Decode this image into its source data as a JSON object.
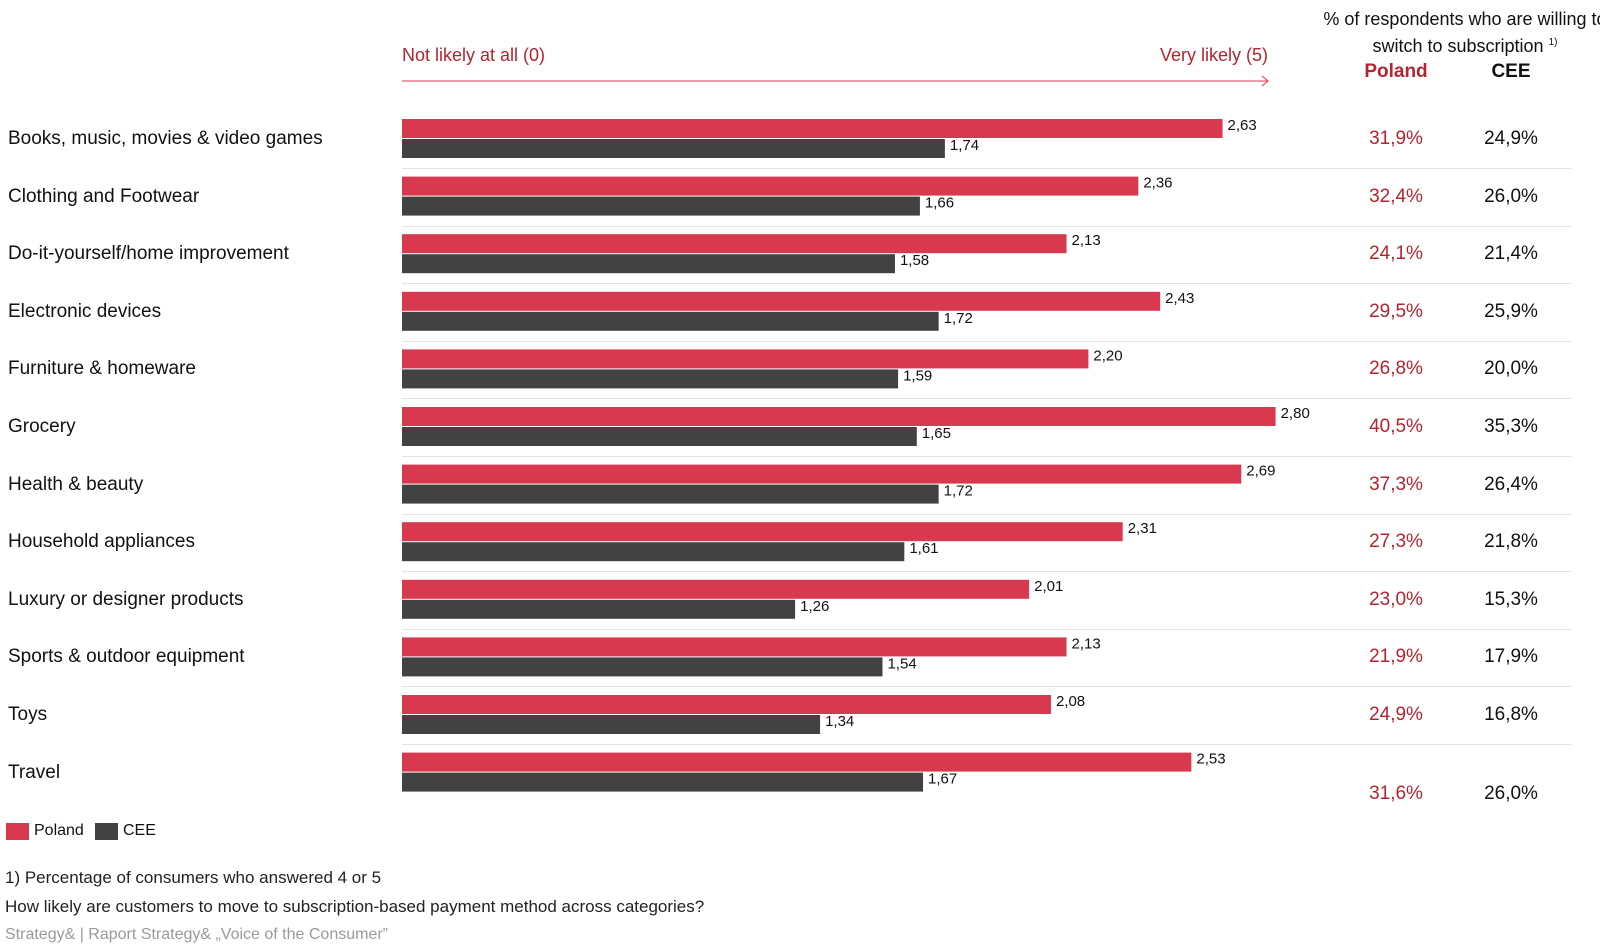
{
  "header": {
    "scale_left": "Not likely at all (0)",
    "scale_right": "Very likely (5)",
    "column_header": "% of respondents who are willing to switch to subscription",
    "column_header_note": "1)",
    "col_poland": "Poland",
    "col_cee": "CEE"
  },
  "legend": [
    {
      "label": "Poland",
      "color": "#d9394f"
    },
    {
      "label": "CEE",
      "color": "#424242"
    }
  ],
  "footnotes": {
    "note": "1) Percentage of consumers who answered 4 or 5",
    "question": "How likely are customers to move to subscription-based payment method across categories?",
    "source": "Strategy&  |  Raport Strategy& „Voice of the Consumer”"
  },
  "chart_data": {
    "type": "bar",
    "orientation": "horizontal",
    "xlim": [
      0,
      5
    ],
    "categories": [
      "Books, music, movies & video games",
      "Clothing and Footwear",
      "Do-it-yourself/home improvement",
      "Electronic devices",
      "Furniture & homeware",
      "Grocery",
      "Health & beauty",
      "Household appliances",
      "Luxury or designer products",
      "Sports & outdoor equipment",
      "Toys",
      "Travel"
    ],
    "series": [
      {
        "name": "Poland",
        "color": "#d9394f",
        "values": [
          2.63,
          2.36,
          2.13,
          2.43,
          2.2,
          2.8,
          2.69,
          2.31,
          2.01,
          2.13,
          2.08,
          2.53
        ],
        "labels": [
          "2,63",
          "2,36",
          "2,13",
          "2,43",
          "2,20",
          "2,80",
          "2,69",
          "2,31",
          "2,01",
          "2,13",
          "2,08",
          "2,53"
        ]
      },
      {
        "name": "CEE",
        "color": "#424242",
        "values": [
          1.74,
          1.66,
          1.58,
          1.72,
          1.59,
          1.65,
          1.72,
          1.61,
          1.26,
          1.54,
          1.34,
          1.67
        ],
        "labels": [
          "1,74",
          "1,66",
          "1,58",
          "1,72",
          "1,59",
          "1,65",
          "1,72",
          "1,61",
          "1,26",
          "1,54",
          "1,34",
          "1,67"
        ]
      }
    ],
    "willing_to_switch": {
      "Poland": [
        "31,9%",
        "32,4%",
        "24,1%",
        "29,5%",
        "26,8%",
        "40,5%",
        "37,3%",
        "27,3%",
        "23,0%",
        "21,9%",
        "24,9%",
        "31,6%"
      ],
      "CEE": [
        "24,9%",
        "26,0%",
        "21,4%",
        "25,9%",
        "20,0%",
        "35,3%",
        "26,4%",
        "21,8%",
        "15,3%",
        "17,9%",
        "16,8%",
        "26,0%"
      ]
    }
  }
}
